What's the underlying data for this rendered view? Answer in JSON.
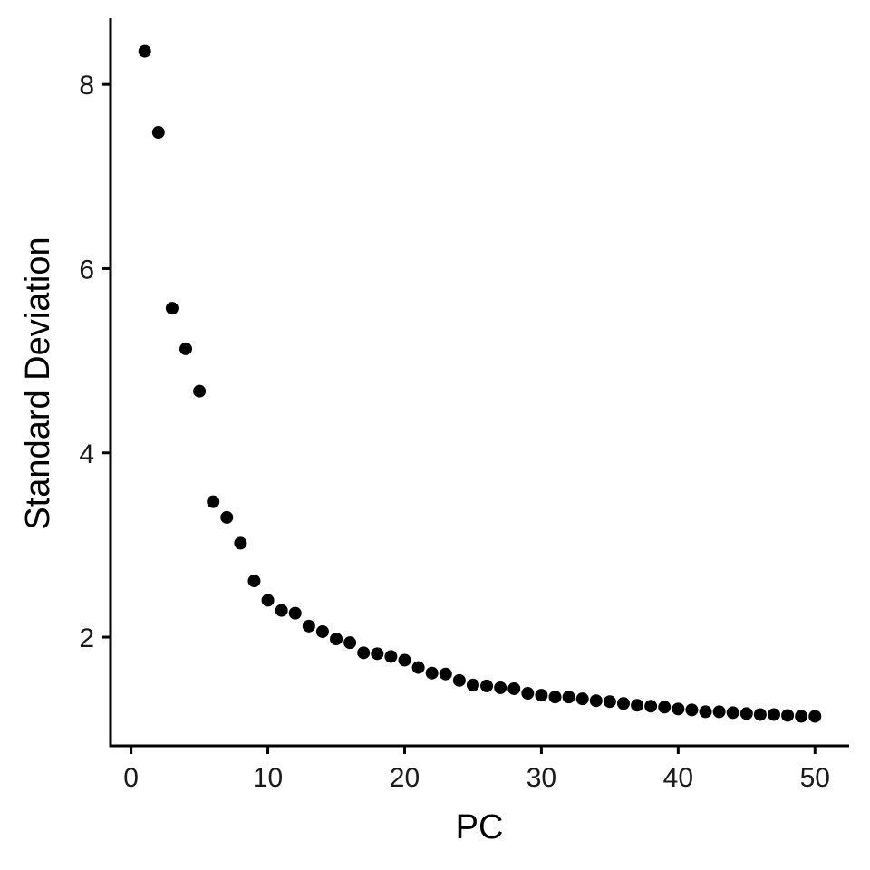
{
  "chart_data": {
    "type": "scatter",
    "title": "",
    "xlabel": "PC",
    "ylabel": "Standard Deviation",
    "xlim": [
      -1.5,
      52.5
    ],
    "ylim": [
      0.82,
      8.72
    ],
    "xticks": [
      0,
      10,
      20,
      30,
      40,
      50
    ],
    "yticks": [
      2,
      4,
      6,
      8
    ],
    "grid": false,
    "point_color": "#000000",
    "series": [
      {
        "name": "Standard Deviation",
        "x": [
          1,
          2,
          3,
          4,
          5,
          6,
          7,
          8,
          9,
          10,
          11,
          12,
          13,
          14,
          15,
          16,
          17,
          18,
          19,
          20,
          21,
          22,
          23,
          24,
          25,
          26,
          27,
          28,
          29,
          30,
          31,
          32,
          33,
          34,
          35,
          36,
          37,
          38,
          39,
          40,
          41,
          42,
          43,
          44,
          45,
          46,
          47,
          48,
          49,
          50
        ],
        "y": [
          8.36,
          7.48,
          5.57,
          5.13,
          4.67,
          3.47,
          3.3,
          3.02,
          2.61,
          2.4,
          2.29,
          2.26,
          2.12,
          2.06,
          1.98,
          1.94,
          1.83,
          1.82,
          1.79,
          1.75,
          1.67,
          1.61,
          1.6,
          1.53,
          1.48,
          1.47,
          1.45,
          1.44,
          1.39,
          1.37,
          1.35,
          1.35,
          1.33,
          1.31,
          1.3,
          1.28,
          1.26,
          1.25,
          1.24,
          1.22,
          1.21,
          1.19,
          1.19,
          1.18,
          1.17,
          1.16,
          1.16,
          1.15,
          1.14,
          1.14
        ]
      }
    ]
  }
}
